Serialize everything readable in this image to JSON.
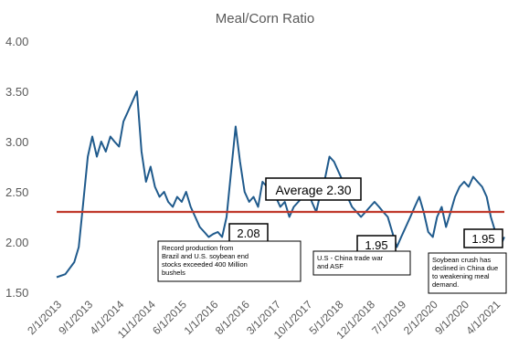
{
  "chart_data": {
    "type": "line",
    "title": "Meal/Corn Ratio",
    "xlabel": "",
    "ylabel": "",
    "ylim": [
      1.5,
      4.0
    ],
    "y_ticks": [
      "4.00",
      "3.50",
      "3.00",
      "2.50",
      "2.00",
      "1.50"
    ],
    "x_ticks": [
      "2/1/2013",
      "9/1/2013",
      "4/1/2014",
      "11/1/2014",
      "6/1/2015",
      "1/1/2016",
      "8/1/2016",
      "3/1/2017",
      "10/1/2017",
      "5/1/2018",
      "12/1/2018",
      "7/1/2019",
      "2/1/2020",
      "9/1/2020",
      "4/1/2021"
    ],
    "grid": false,
    "legend": "none",
    "colors": {
      "series": "#1f5a8c",
      "average_line": "#c0392b",
      "text": "#595959"
    },
    "series": [
      {
        "x": [
          "2013-02-01",
          "2013-04-01",
          "2013-06-01",
          "2013-07-01",
          "2013-08-01",
          "2013-09-01",
          "2013-10-01",
          "2013-11-01",
          "2013-12-01",
          "2014-01-01",
          "2014-02-01",
          "2014-03-01",
          "2014-04-01",
          "2014-05-01",
          "2014-06-01",
          "2014-07-01",
          "2014-08-01",
          "2014-09-01",
          "2014-10-01",
          "2014-11-01",
          "2014-12-01",
          "2015-01-01",
          "2015-02-01",
          "2015-03-01",
          "2015-04-01",
          "2015-05-01",
          "2015-06-01",
          "2015-07-01",
          "2015-08-01",
          "2015-09-01",
          "2015-10-01",
          "2015-11-01",
          "2015-12-01",
          "2016-01-01",
          "2016-02-01",
          "2016-03-01",
          "2016-04-01",
          "2016-05-01",
          "2016-06-01",
          "2016-07-01",
          "2016-08-01",
          "2016-09-01",
          "2016-10-01",
          "2016-11-01",
          "2016-12-01",
          "2017-01-01",
          "2017-02-01",
          "2017-03-01",
          "2017-04-01",
          "2017-05-01",
          "2017-06-01",
          "2017-07-01",
          "2017-08-01",
          "2017-09-01",
          "2017-10-01",
          "2017-11-01",
          "2017-12-01",
          "2018-01-01",
          "2018-02-01",
          "2018-03-01",
          "2018-04-01",
          "2018-05-01",
          "2018-06-01",
          "2018-07-01",
          "2018-08-01",
          "2018-09-01",
          "2018-10-01",
          "2018-11-01",
          "2018-12-01",
          "2019-01-01",
          "2019-02-01",
          "2019-03-01",
          "2019-04-01",
          "2019-05-01",
          "2019-06-01",
          "2019-07-01",
          "2019-08-01",
          "2019-09-01",
          "2019-10-01",
          "2019-11-01",
          "2019-12-01",
          "2020-01-01",
          "2020-02-01",
          "2020-03-01",
          "2020-04-01",
          "2020-05-01",
          "2020-06-01",
          "2020-07-01",
          "2020-08-01",
          "2020-09-01",
          "2020-10-01",
          "2020-11-01",
          "2020-12-01",
          "2021-01-01",
          "2021-02-01",
          "2021-03-01",
          "2021-04-01",
          "2021-05-01",
          "2021-06-01"
        ],
        "values": [
          1.65,
          1.68,
          1.8,
          1.95,
          2.4,
          2.85,
          3.05,
          2.85,
          3.0,
          2.9,
          3.05,
          3.0,
          2.95,
          3.2,
          3.3,
          3.4,
          3.5,
          2.9,
          2.6,
          2.75,
          2.55,
          2.45,
          2.5,
          2.4,
          2.35,
          2.45,
          2.4,
          2.5,
          2.35,
          2.25,
          2.15,
          2.1,
          2.05,
          2.08,
          2.1,
          2.05,
          2.25,
          2.7,
          3.15,
          2.8,
          2.5,
          2.4,
          2.45,
          2.35,
          2.6,
          2.55,
          2.5,
          2.45,
          2.35,
          2.4,
          2.25,
          2.35,
          2.4,
          2.45,
          2.55,
          2.4,
          2.3,
          2.5,
          2.65,
          2.85,
          2.8,
          2.7,
          2.6,
          2.45,
          2.35,
          2.3,
          2.25,
          2.3,
          2.35,
          2.4,
          2.35,
          2.3,
          2.25,
          2.1,
          1.95,
          2.05,
          2.15,
          2.25,
          2.35,
          2.45,
          2.3,
          2.1,
          2.05,
          2.25,
          2.35,
          2.15,
          2.3,
          2.45,
          2.55,
          2.6,
          2.55,
          2.65,
          2.6,
          2.55,
          2.45,
          2.25,
          2.1,
          1.95,
          2.05
        ]
      }
    ],
    "reference_line": {
      "value": 2.3,
      "label": "Average 2.30"
    },
    "annotations": [
      {
        "value_label": "2.08",
        "text": "Record production from Brazil and U.S. soybean end stocks exceeded 400 Million bushels"
      },
      {
        "value_label": "1.95",
        "text": "U.S - China trade war and ASF"
      },
      {
        "value_label": "1.95",
        "text": "Soybean crush has declined in China due to weakening meal demand."
      }
    ]
  }
}
